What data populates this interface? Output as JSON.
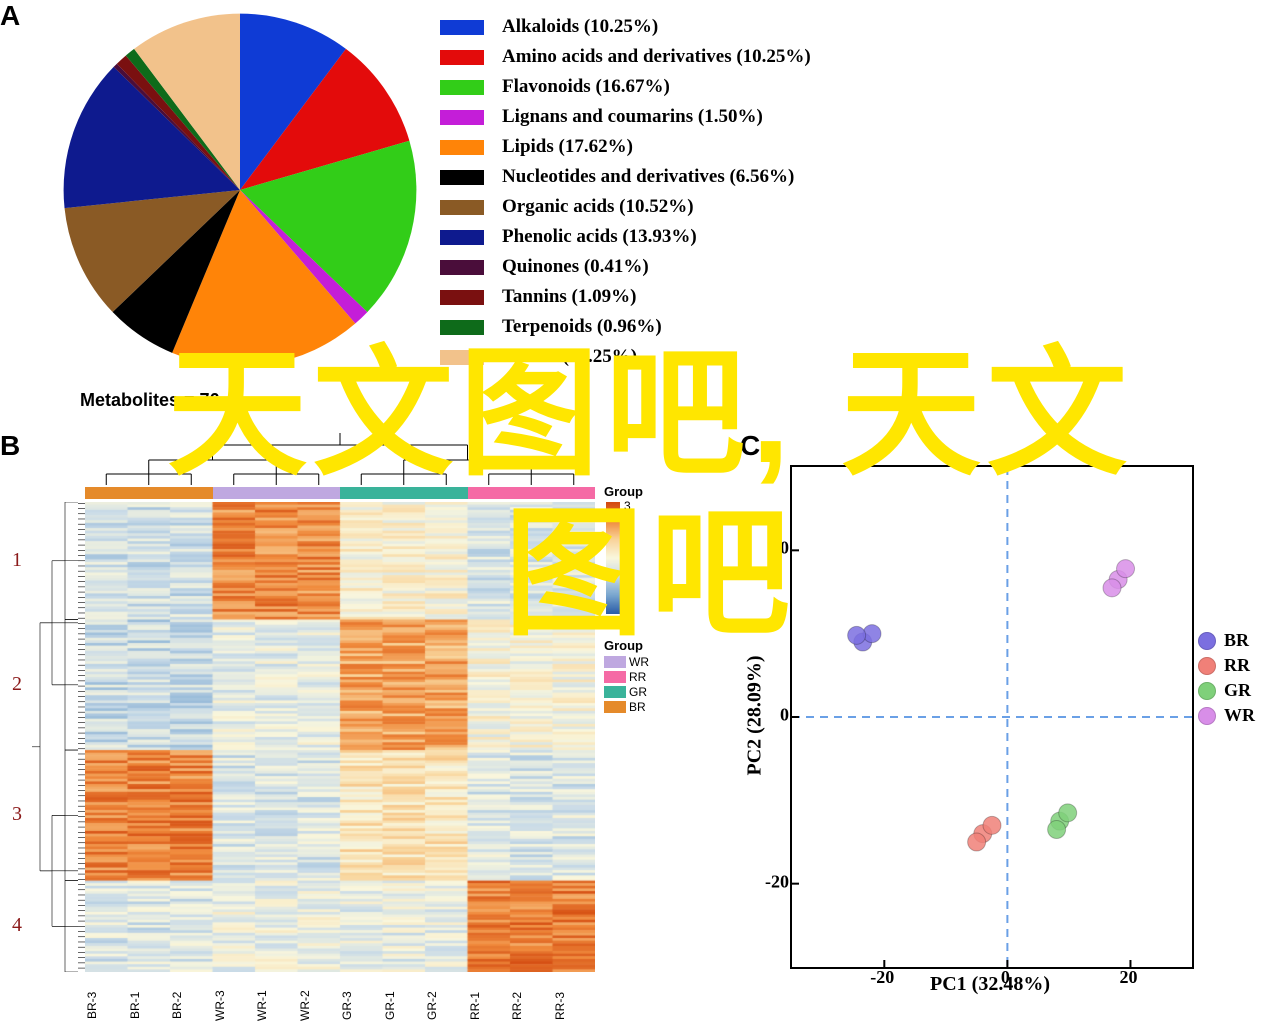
{
  "panels": {
    "A": "A",
    "B": "B",
    "C": "C"
  },
  "pie": {
    "type": "pie",
    "title": "Metabolites = 76",
    "background_color": "#ffffff",
    "label_fontsize": 19,
    "label_fontweight": "bold",
    "slices": [
      {
        "label": "Alkaloids (10.25%)",
        "value": 10.25,
        "color": "#0f3bd5"
      },
      {
        "label": "Amino acids and derivatives (10.25%)",
        "value": 10.25,
        "color": "#e30b0b"
      },
      {
        "label": "Flavonoids (16.67%)",
        "value": 16.67,
        "color": "#32cd18"
      },
      {
        "label": "Lignans and coumarins (1.50%)",
        "value": 1.5,
        "color": "#c41ed8"
      },
      {
        "label": "Lipids (17.62%)",
        "value": 17.62,
        "color": "#ff8408"
      },
      {
        "label": "Nucleotides and derivatives (6.56%)",
        "value": 6.56,
        "color": "#000000"
      },
      {
        "label": "Organic acids (10.52%)",
        "value": 10.52,
        "color": "#8a5a25"
      },
      {
        "label": "Phenolic acids (13.93%)",
        "value": 13.93,
        "color": "#0e1a8e"
      },
      {
        "label": "Quinones (0.41%)",
        "value": 0.41,
        "color": "#4a0d3a"
      },
      {
        "label": "Tannins (1.09%)",
        "value": 1.09,
        "color": "#7a1010"
      },
      {
        "label": "Terpenoids (0.96%)",
        "value": 0.96,
        "color": "#0e6b1a"
      },
      {
        "label": "Others (10.25%)",
        "value": 10.25,
        "color": "#f2c28b"
      }
    ],
    "start_angle_deg": -90
  },
  "watermark": {
    "line1": "天文图吧, 天文",
    "line2": "图吧",
    "color": "#ffe600",
    "fontsize": 140,
    "fontweight": 900
  },
  "heatmap": {
    "type": "heatmap",
    "columns": [
      "BR-3",
      "BR-1",
      "BR-2",
      "WR-3",
      "WR-1",
      "WR-2",
      "GR-3",
      "GR-1",
      "GR-2",
      "RR-1",
      "RR-2",
      "RR-3"
    ],
    "column_groups": [
      "BR",
      "BR",
      "BR",
      "WR",
      "WR",
      "WR",
      "GR",
      "GR",
      "GR",
      "RR",
      "RR",
      "RR"
    ],
    "group_colors": {
      "WR": "#bfa8e0",
      "RR": "#f56aa5",
      "GR": "#3ab39a",
      "BR": "#e58a2a"
    },
    "n_rows": 180,
    "row_clusters": [
      {
        "id": "1",
        "start": 0,
        "end": 45
      },
      {
        "id": "2",
        "start": 45,
        "end": 95
      },
      {
        "id": "3",
        "start": 95,
        "end": 145
      },
      {
        "id": "4",
        "start": 145,
        "end": 180
      }
    ],
    "colorscale": {
      "min": -3,
      "max": 3,
      "ticks": [
        3,
        2,
        1,
        0,
        -1,
        -2,
        -3
      ],
      "colors": [
        "#2b5da8",
        "#7aa7d0",
        "#c9dbe8",
        "#faf7dd",
        "#f9d49a",
        "#f08a3c",
        "#d34a10"
      ]
    },
    "legend_title_group": "Group",
    "legend_title_colorbar": "Group",
    "cluster_label_color": "#8b1a1a",
    "cluster_label_fontsize": 20,
    "col_label_fontsize": 12,
    "dendrogram_color": "#000000",
    "background_color": "#fbf5d9",
    "group_profiles_comment": "column-wise mean z-score per row-cluster for rendering",
    "profiles": {
      "1": {
        "BR": -0.8,
        "WR": 2.0,
        "GR": 0.1,
        "RR": -0.6
      },
      "2": {
        "BR": -0.9,
        "WR": -0.4,
        "GR": 1.6,
        "RR": 0.0
      },
      "3": {
        "BR": 2.1,
        "WR": -0.6,
        "GR": 0.5,
        "RR": -0.6
      },
      "4": {
        "BR": -0.6,
        "WR": -0.3,
        "GR": -0.4,
        "RR": 2.2
      }
    },
    "noise_sd": 0.7
  },
  "pca": {
    "type": "scatter",
    "xlabel": "PC1 (32.48%)",
    "ylabel": "PC2 (28.09%)",
    "xlim": [
      -35,
      30
    ],
    "ylim": [
      -30,
      30
    ],
    "xticks": [
      -20,
      0,
      20
    ],
    "yticks": [
      -20,
      0,
      20
    ],
    "tick_fontsize": 18,
    "label_fontsize": 20,
    "label_fontweight": "bold",
    "border_color": "#000000",
    "border_width": 2,
    "zero_line_color": "#6aa0e6",
    "zero_line_dash": "8,6",
    "zero_line_width": 2,
    "legend": [
      {
        "label": "BR",
        "color": "#7b6fe0"
      },
      {
        "label": "RR",
        "color": "#f08078"
      },
      {
        "label": "GR",
        "color": "#7fd07a"
      },
      {
        "label": "WR",
        "color": "#d88ee8"
      }
    ],
    "marker_size": 9,
    "marker_alpha": 0.85,
    "points": [
      {
        "group": "BR",
        "x": -23.5,
        "y": 9.0
      },
      {
        "group": "BR",
        "x": -22.0,
        "y": 10.0
      },
      {
        "group": "BR",
        "x": -24.5,
        "y": 9.8
      },
      {
        "group": "WR",
        "x": 18.0,
        "y": 16.5
      },
      {
        "group": "WR",
        "x": 19.2,
        "y": 17.8
      },
      {
        "group": "WR",
        "x": 17.0,
        "y": 15.5
      },
      {
        "group": "GR",
        "x": 8.5,
        "y": -12.5
      },
      {
        "group": "GR",
        "x": 9.8,
        "y": -11.5
      },
      {
        "group": "GR",
        "x": 8.0,
        "y": -13.5
      },
      {
        "group": "RR",
        "x": -4.0,
        "y": -14.0
      },
      {
        "group": "RR",
        "x": -2.5,
        "y": -13.0
      },
      {
        "group": "RR",
        "x": -5.0,
        "y": -15.0
      }
    ]
  }
}
